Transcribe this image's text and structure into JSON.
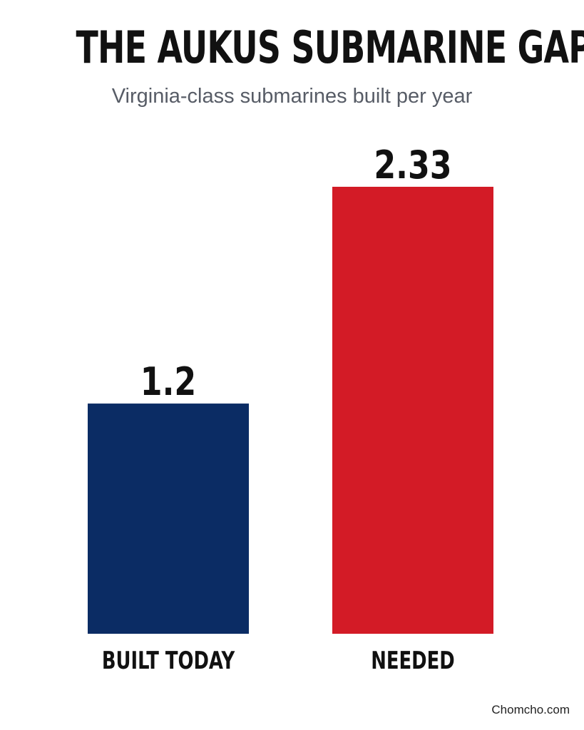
{
  "header": {
    "title": "THE AUKUS SUBMARINE GAP",
    "subtitle": "Virginia-class submarines built per year"
  },
  "chart_data": {
    "type": "bar",
    "title": "THE AUKUS SUBMARINE GAP",
    "subtitle": "Virginia-class submarines built per year",
    "categories": [
      "BUILT TODAY",
      "NEEDED"
    ],
    "values": [
      1.2,
      2.33
    ],
    "value_labels": [
      "1.2",
      "2.33"
    ],
    "colors": [
      "#0b2c64",
      "#d31b26"
    ],
    "xlabel": "",
    "ylabel": "",
    "ylim": [
      0,
      2.33
    ],
    "grid": false,
    "legend": "none"
  },
  "footer": {
    "credit": "Chomcho.com"
  }
}
